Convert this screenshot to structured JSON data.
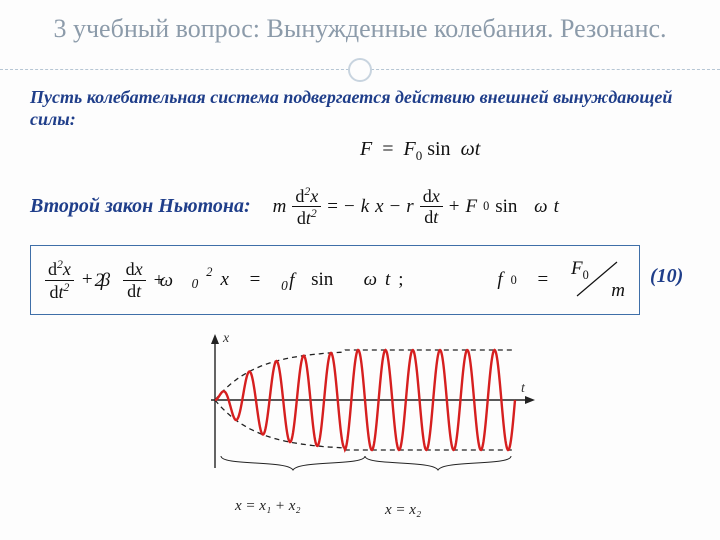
{
  "title": "3 учебный вопрос: Вынужденные колебания. Резонанс.",
  "intro": "Пусть колебательная система подвергается действию внешней вынуждающей  силы:",
  "force_eq": {
    "F": "F",
    "eq": "=",
    "F0": "F",
    "sub0": "0",
    "sin": "sin",
    "omega": "ω",
    "t": "t"
  },
  "newton_label": "Второй закон Ньютона:",
  "newton_eq": {
    "m": "m",
    "d2x": "d",
    "x": "x",
    "dt2": "d",
    "t": "t",
    "two": "2",
    "eq": "=",
    "minus": "−",
    "k": "k",
    "r": "r",
    "plus": "+",
    "F0": "F",
    "sub0": "0",
    "sin": "sin",
    "omega": "ω"
  },
  "eq10": {
    "two": "2",
    "beta": "β",
    "plus": "+",
    "omega": "ω",
    "sub0": "0",
    "x": "x",
    "eq": "=",
    "f": "f",
    "sin": "sin",
    "t": "t",
    "semi": ";",
    "F": "F",
    "m": "m"
  },
  "eq_number": "(10)",
  "axes": {
    "x_label": "t",
    "y_label": "x"
  },
  "wave": {
    "stroke": "#d61f1f",
    "stroke_width": 2.4,
    "envelope_color": "#222",
    "axis_color": "#222"
  },
  "bottom_labels": {
    "left": "x = x₁ + x₂",
    "right": "x = x₂"
  }
}
